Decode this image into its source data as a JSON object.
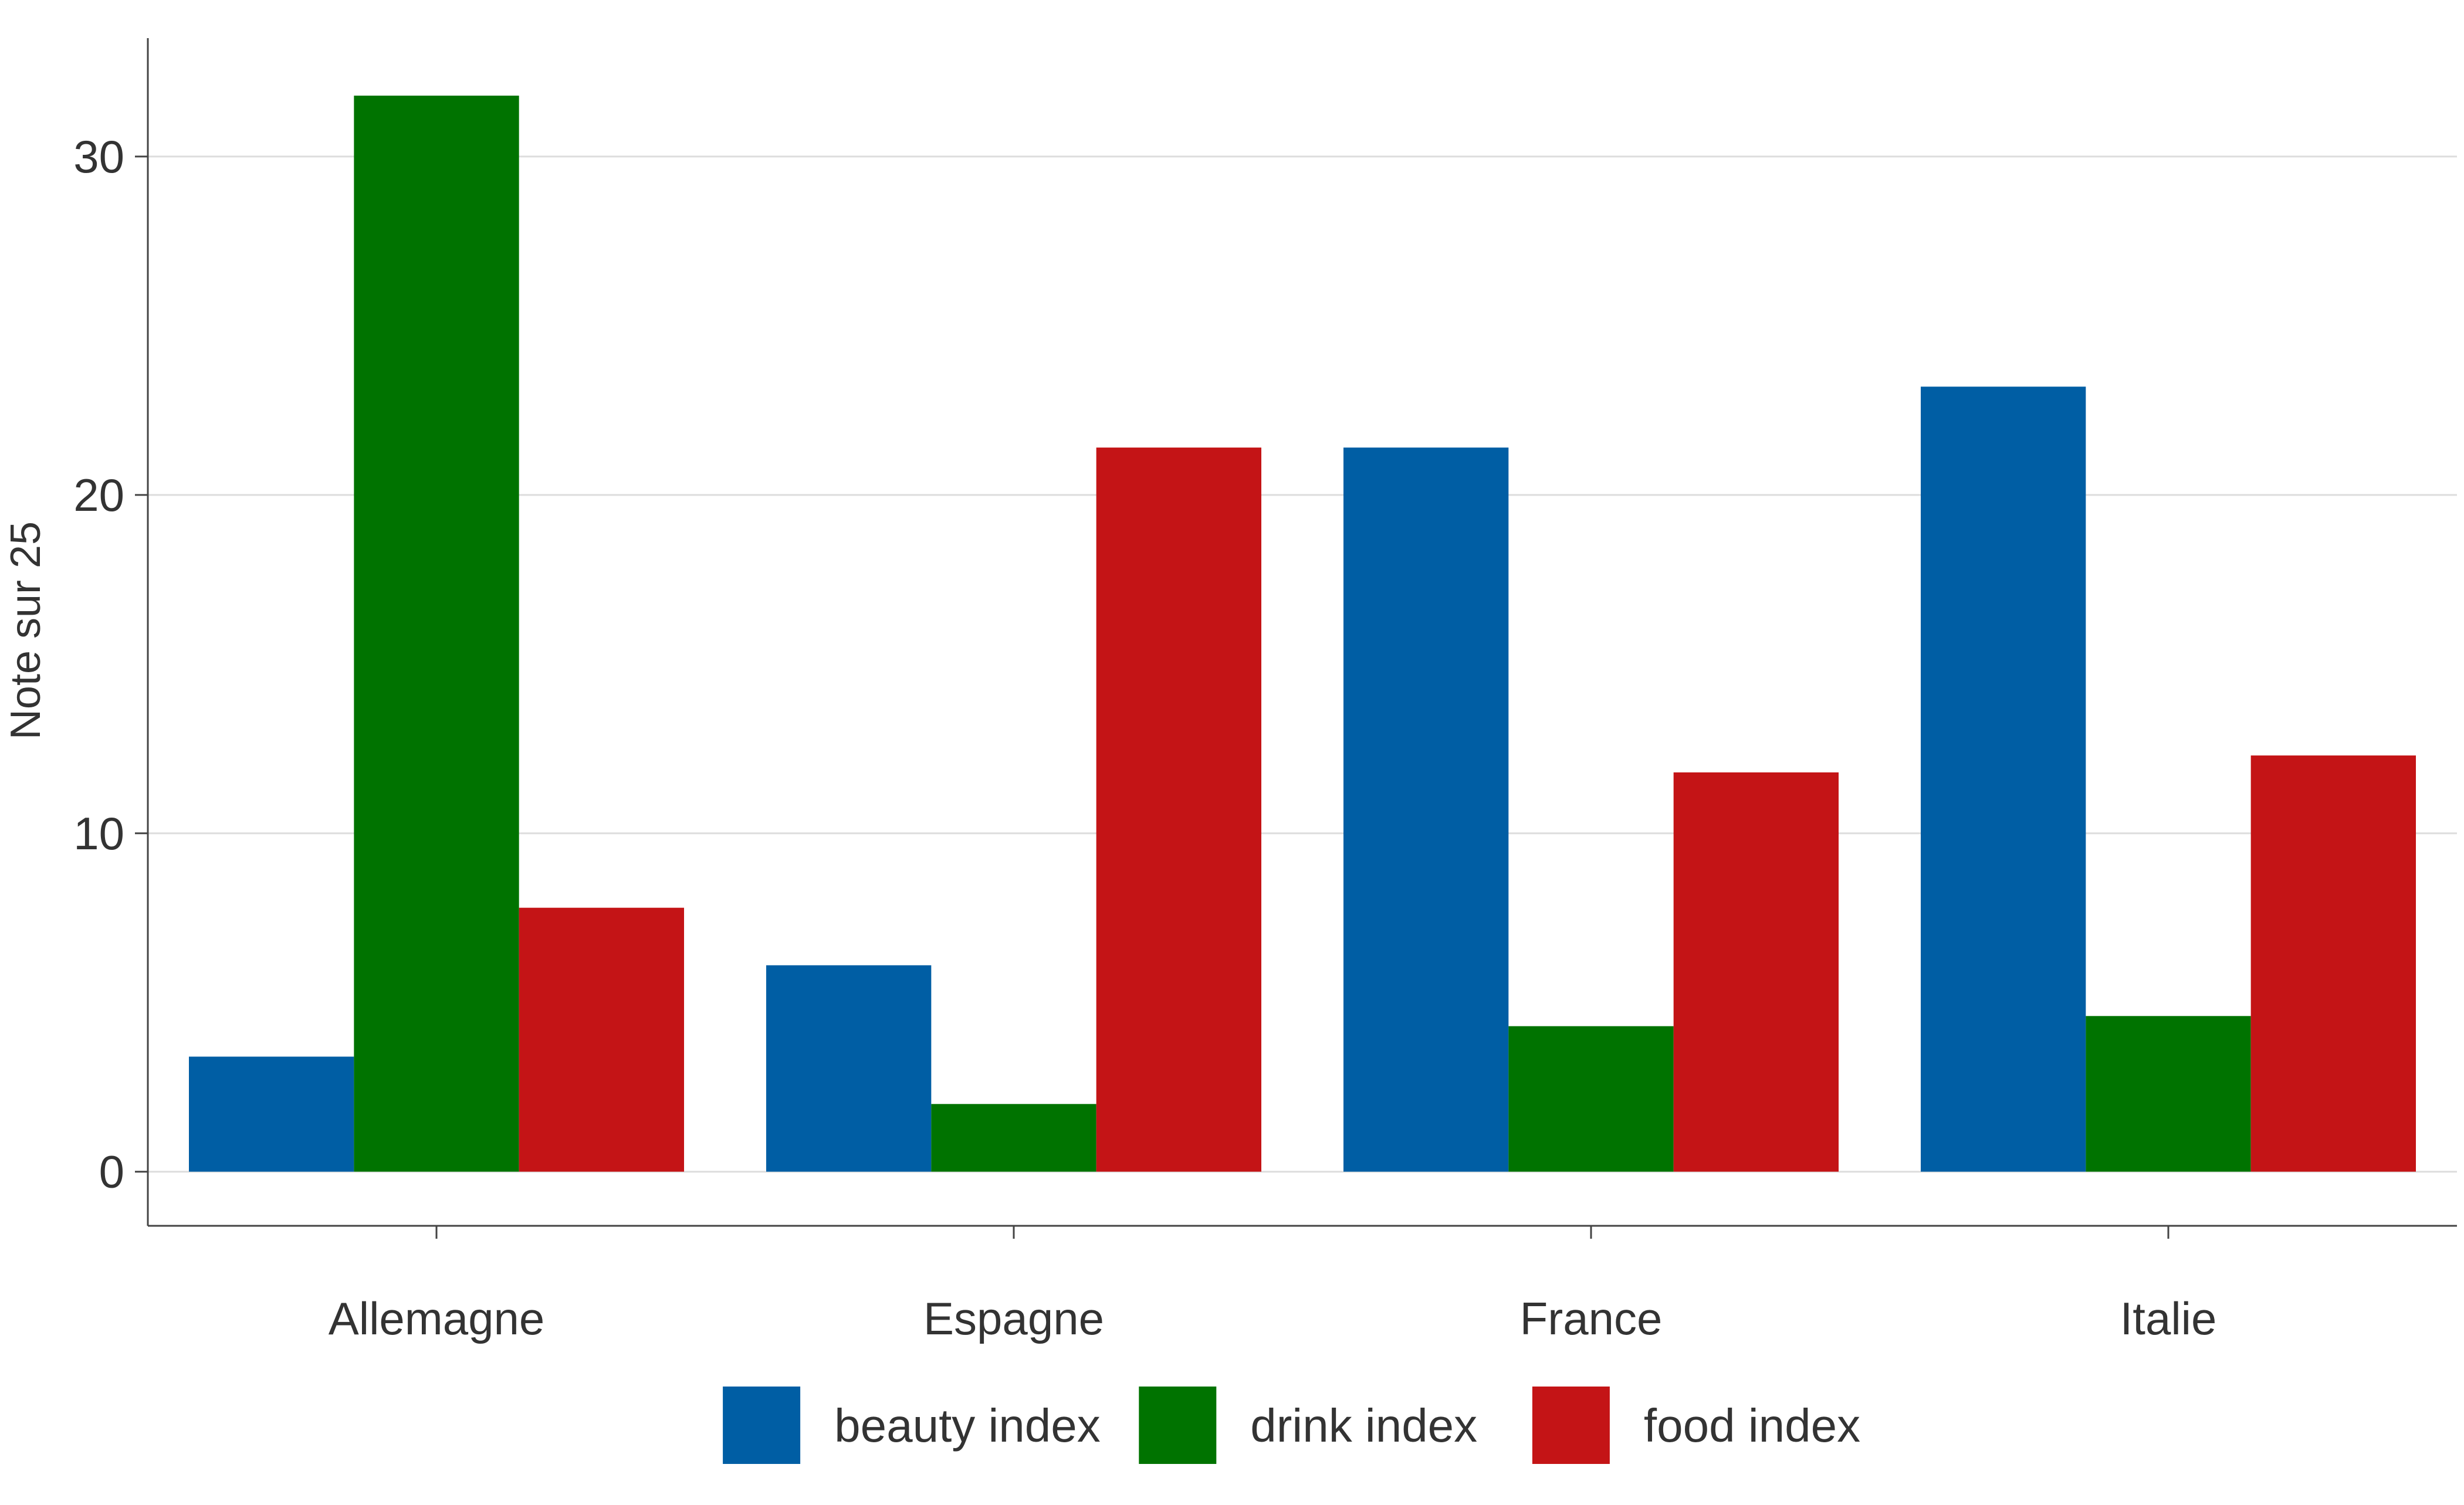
{
  "chart_data": {
    "type": "bar",
    "title": "",
    "xlabel": "",
    "ylabel": "Note sur 25",
    "categories": [
      "Allemagne",
      "Espagne",
      "France",
      "Italie"
    ],
    "series": [
      {
        "name": "beauty index",
        "color": "#005ea4",
        "values": [
          3.4,
          6.1,
          21.4,
          23.2
        ]
      },
      {
        "name": "drink index",
        "color": "#007300",
        "values": [
          31.8,
          2.0,
          4.3,
          4.6
        ]
      },
      {
        "name": "food index",
        "color": "#c41416",
        "values": [
          7.8,
          21.4,
          11.8,
          12.3
        ]
      }
    ],
    "ylim": [
      -1.6,
      33.5
    ],
    "yticks": [
      0,
      10,
      20,
      30
    ],
    "ytick_labels": [
      "0",
      "10",
      "20",
      "30"
    ],
    "grid": "horizontal",
    "legend_position": "bottom"
  }
}
